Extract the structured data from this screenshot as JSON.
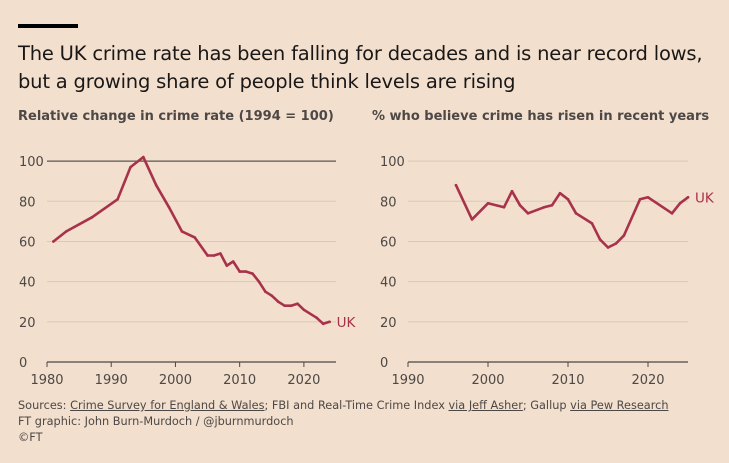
{
  "header": {
    "title": "The UK crime rate has been falling for decades and is near record lows, but a growing share of people think levels are rising"
  },
  "colors": {
    "background": "#f2dfce",
    "series": "#a8324a",
    "axis": "#4d4845",
    "gridline": "#dcc8b6",
    "reference_line": "#5c5450"
  },
  "chart_data": [
    {
      "type": "line",
      "title": "Relative change in crime rate (1994 = 100)",
      "xlabel": "",
      "ylabel": "",
      "xlim": [
        1980,
        2025
      ],
      "ylim": [
        0,
        110
      ],
      "xticks": [
        1980,
        1990,
        2000,
        2010,
        2020
      ],
      "yticks": [
        0,
        20,
        40,
        60,
        80,
        100
      ],
      "reference_line": 100,
      "grid": true,
      "series": [
        {
          "name": "UK",
          "x": [
            1981,
            1983,
            1987,
            1991,
            1993,
            1995,
            1997,
            1999,
            2001,
            2003,
            2005,
            2006,
            2007,
            2008,
            2009,
            2010,
            2011,
            2012,
            2013,
            2014,
            2015,
            2016,
            2017,
            2018,
            2019,
            2020,
            2022,
            2023,
            2024
          ],
          "y": [
            60,
            65,
            72,
            81,
            97,
            102,
            88,
            77,
            65,
            62,
            53,
            53,
            54,
            48,
            50,
            45,
            45,
            44,
            40,
            35,
            33,
            30,
            28,
            28,
            29,
            26,
            22,
            19,
            20
          ]
        }
      ]
    },
    {
      "type": "line",
      "title": "% who believe crime has risen in recent years",
      "xlabel": "",
      "ylabel": "",
      "xlim": [
        1990,
        2025
      ],
      "ylim": [
        0,
        110
      ],
      "xticks": [
        1990,
        2000,
        2010,
        2020
      ],
      "yticks": [
        0,
        20,
        40,
        60,
        80,
        100
      ],
      "grid": true,
      "series": [
        {
          "name": "UK",
          "x": [
            1996,
            1998,
            2000,
            2002,
            2003,
            2004,
            2005,
            2007,
            2008,
            2009,
            2010,
            2011,
            2013,
            2014,
            2015,
            2016,
            2017,
            2019,
            2020,
            2023,
            2024,
            2025
          ],
          "y": [
            88,
            71,
            79,
            77,
            85,
            78,
            74,
            77,
            78,
            84,
            81,
            74,
            69,
            61,
            57,
            59,
            63,
            81,
            82,
            74,
            79,
            82
          ]
        }
      ]
    }
  ],
  "footer": {
    "sources_prefix": "Sources: ",
    "source1": "Crime Survey for England & Wales",
    "sep1": "; FBI and Real-Time Crime Index ",
    "source2": "via Jeff Asher",
    "sep2": "; Gallup ",
    "source3": "via Pew Research",
    "credit": "FT graphic: John Burn-Murdoch / @jburnmurdoch",
    "copyright": "©FT"
  }
}
